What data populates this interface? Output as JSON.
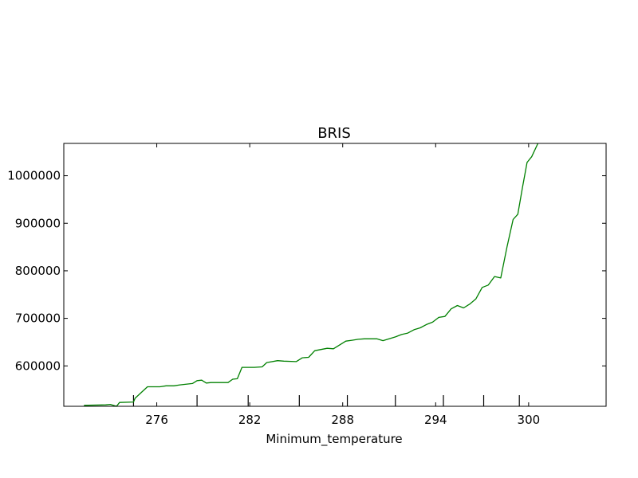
{
  "chart_data": {
    "type": "line",
    "title": "BRIS",
    "xlabel": "Minimum_temperature",
    "ylabel": "",
    "xlim": [
      270,
      305
    ],
    "ylim": [
      515000,
      1068000
    ],
    "x_ticks": [
      276,
      282,
      288,
      294,
      300
    ],
    "x_tick_labels": [
      "276",
      "282",
      "288",
      "294",
      "300"
    ],
    "y_ticks": [
      600000,
      700000,
      800000,
      900000,
      1000000
    ],
    "y_tick_labels": [
      "600000",
      "700000",
      "800000",
      "900000",
      "1000000"
    ],
    "rug_ticks": [
      274.5,
      278.6,
      281.9,
      285.2,
      288.3,
      291.4,
      294.5,
      297.1,
      299.4
    ],
    "grid": false,
    "legend": "none",
    "series": [
      {
        "color": "#008000",
        "x": [
          271.3,
          272.7,
          273.0,
          273.4,
          273.6,
          274.5,
          274.6,
          275.4,
          276.2,
          276.6,
          277.1,
          277.5,
          278.3,
          278.6,
          278.9,
          279.2,
          279.5,
          280.6,
          280.9,
          281.2,
          281.5,
          282.3,
          282.8,
          283.1,
          283.8,
          284.2,
          285.0,
          285.4,
          285.8,
          286.2,
          287.0,
          287.4,
          288.2,
          288.6,
          289.0,
          289.4,
          290.2,
          290.6,
          291.4,
          291.8,
          292.2,
          292.6,
          293.0,
          293.4,
          293.8,
          294.2,
          294.6,
          295.0,
          295.4,
          295.8,
          296.2,
          296.6,
          297.0,
          297.4,
          297.8,
          298.2,
          298.6,
          299.0,
          299.3,
          299.6,
          299.9,
          300.2,
          300.6
        ],
        "values": [
          517000,
          518000,
          519000,
          515000,
          523000,
          524000,
          532000,
          556000,
          556000,
          558000,
          558000,
          560000,
          563000,
          569000,
          570000,
          564000,
          565000,
          565000,
          572000,
          573000,
          597000,
          597000,
          598000,
          607000,
          611000,
          610000,
          609000,
          617000,
          618000,
          632000,
          637000,
          636000,
          652000,
          654000,
          656000,
          657000,
          657000,
          653000,
          661000,
          666000,
          669000,
          676000,
          680000,
          687000,
          692000,
          702000,
          704000,
          720000,
          727000,
          722000,
          730000,
          741000,
          765000,
          770000,
          788000,
          785000,
          850000,
          908000,
          919000,
          975000,
          1028000,
          1040000,
          1068000
        ]
      }
    ]
  }
}
